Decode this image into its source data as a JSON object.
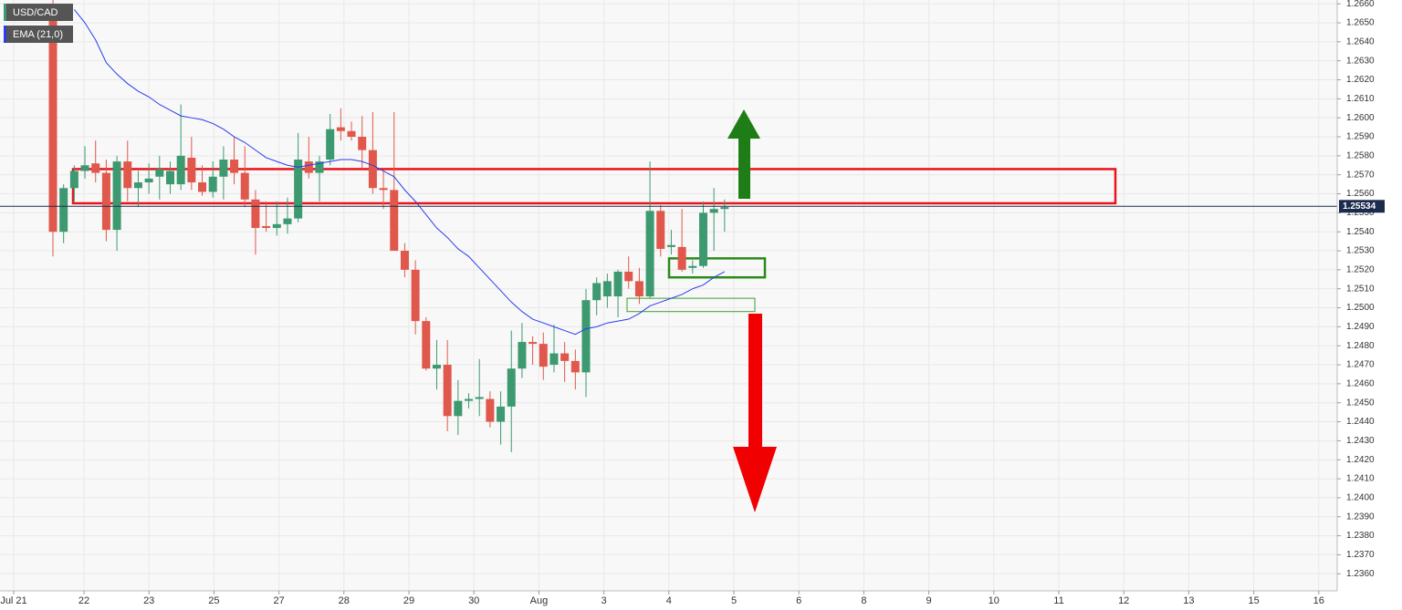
{
  "chart_data": {
    "type": "candlestick",
    "x_tick_labels": [
      "Jul 21",
      "22",
      "23",
      "25",
      "27",
      "28",
      "29",
      "30",
      "Aug",
      "3",
      "4",
      "5",
      "6",
      "8",
      "9",
      "10",
      "11",
      "12",
      "13",
      "15",
      "16"
    ],
    "ylim": [
      1.2351,
      1.2662
    ],
    "yticks": [
      {
        "value": 1.236,
        "label": "1.2360"
      },
      {
        "value": 1.237,
        "label": "1.2370"
      },
      {
        "value": 1.238,
        "label": "1.2380"
      },
      {
        "value": 1.239,
        "label": "1.2390"
      },
      {
        "value": 1.24,
        "label": "1.2400"
      },
      {
        "value": 1.241,
        "label": "1.2410"
      },
      {
        "value": 1.242,
        "label": "1.2420"
      },
      {
        "value": 1.243,
        "label": "1.2430"
      },
      {
        "value": 1.244,
        "label": "1.2440"
      },
      {
        "value": 1.245,
        "label": "1.2450"
      },
      {
        "value": 1.246,
        "label": "1.2460"
      },
      {
        "value": 1.247,
        "label": "1.2470"
      },
      {
        "value": 1.248,
        "label": "1.2480"
      },
      {
        "value": 1.249,
        "label": "1.2490"
      },
      {
        "value": 1.25,
        "label": "1.2500"
      },
      {
        "value": 1.251,
        "label": "1.2510"
      },
      {
        "value": 1.252,
        "label": "1.2520"
      },
      {
        "value": 1.253,
        "label": "1.2530"
      },
      {
        "value": 1.254,
        "label": "1.2540"
      },
      {
        "value": 1.255,
        "label": "1.2550"
      },
      {
        "value": 1.256,
        "label": "1.2560"
      },
      {
        "value": 1.257,
        "label": "1.2570"
      },
      {
        "value": 1.258,
        "label": "1.2580"
      },
      {
        "value": 1.259,
        "label": "1.2590"
      },
      {
        "value": 1.26,
        "label": "1.2600"
      },
      {
        "value": 1.261,
        "label": "1.2610"
      },
      {
        "value": 1.262,
        "label": "1.2620"
      },
      {
        "value": 1.263,
        "label": "1.2630"
      },
      {
        "value": 1.264,
        "label": "1.2640"
      },
      {
        "value": 1.265,
        "label": "1.2650"
      },
      {
        "value": 1.266,
        "label": "1.2660"
      }
    ],
    "grid": true,
    "last_price": {
      "value": 1.25534,
      "label": "1.25534"
    },
    "series": [
      {
        "name": "USD/CAD",
        "type": "candlestick",
        "up_color": "#3d9970",
        "down_color": "#e0584b",
        "values": [
          [
            1.2658,
            1.2668,
            1.2527,
            1.254
          ],
          [
            1.254,
            1.2565,
            1.2534,
            1.2563
          ],
          [
            1.2563,
            1.2575,
            1.2556,
            1.2572
          ],
          [
            1.2572,
            1.2585,
            1.2568,
            1.2575
          ],
          [
            1.2576,
            1.2588,
            1.2566,
            1.2571
          ],
          [
            1.2571,
            1.2578,
            1.2535,
            1.2541
          ],
          [
            1.2541,
            1.258,
            1.253,
            1.2577
          ],
          [
            1.2577,
            1.2588,
            1.2556,
            1.2563
          ],
          [
            1.2563,
            1.2572,
            1.2553,
            1.2566
          ],
          [
            1.2566,
            1.2576,
            1.256,
            1.2568
          ],
          [
            1.2569,
            1.258,
            1.2557,
            1.2573
          ],
          [
            1.2565,
            1.2577,
            1.256,
            1.2572
          ],
          [
            1.2565,
            1.2607,
            1.2562,
            1.258
          ],
          [
            1.2579,
            1.259,
            1.2562,
            1.2566
          ],
          [
            1.2566,
            1.2575,
            1.2559,
            1.2561
          ],
          [
            1.2561,
            1.2577,
            1.2558,
            1.2569
          ],
          [
            1.2569,
            1.2585,
            1.2557,
            1.2578
          ],
          [
            1.2578,
            1.259,
            1.2565,
            1.2571
          ],
          [
            1.2571,
            1.2585,
            1.2553,
            1.2557
          ],
          [
            1.2557,
            1.2562,
            1.2528,
            1.2542
          ],
          [
            1.2543,
            1.2556,
            1.254,
            1.2542
          ],
          [
            1.2542,
            1.2556,
            1.2538,
            1.2544
          ],
          [
            1.2544,
            1.2558,
            1.2539,
            1.2547
          ],
          [
            1.2547,
            1.2592,
            1.2545,
            1.2578
          ],
          [
            1.2577,
            1.259,
            1.2568,
            1.2571
          ],
          [
            1.2571,
            1.258,
            1.2556,
            1.2577
          ],
          [
            1.2578,
            1.2602,
            1.2575,
            1.2594
          ],
          [
            1.2595,
            1.2605,
            1.2588,
            1.2593
          ],
          [
            1.2593,
            1.2598,
            1.2588,
            1.259
          ],
          [
            1.259,
            1.2601,
            1.2573,
            1.2583
          ],
          [
            1.2583,
            1.2603,
            1.256,
            1.2563
          ],
          [
            1.2563,
            1.2572,
            1.2552,
            1.2562
          ],
          [
            1.2562,
            1.2603,
            1.253,
            1.253
          ],
          [
            1.253,
            1.2534,
            1.2516,
            1.252
          ],
          [
            1.252,
            1.2525,
            1.2486,
            1.2493
          ],
          [
            1.2493,
            1.2495,
            1.2467,
            1.2468
          ],
          [
            1.2468,
            1.2483,
            1.2457,
            1.247
          ],
          [
            1.247,
            1.2483,
            1.2435,
            1.2443
          ],
          [
            1.2443,
            1.2462,
            1.2433,
            1.2451
          ],
          [
            1.2451,
            1.2455,
            1.2447,
            1.2452
          ],
          [
            1.2452,
            1.2473,
            1.2443,
            1.2453
          ],
          [
            1.2452,
            1.2456,
            1.2437,
            1.244
          ],
          [
            1.244,
            1.2456,
            1.2428,
            1.2448
          ],
          [
            1.2448,
            1.2488,
            1.2424,
            1.2468
          ],
          [
            1.2468,
            1.2492,
            1.2463,
            1.2482
          ],
          [
            1.2482,
            1.2485,
            1.247,
            1.2481
          ],
          [
            1.2481,
            1.2487,
            1.2462,
            1.2469
          ],
          [
            1.247,
            1.2491,
            1.2466,
            1.2476
          ],
          [
            1.2476,
            1.2482,
            1.2461,
            1.2472
          ],
          [
            1.2472,
            1.2478,
            1.2457,
            1.2466
          ],
          [
            1.2466,
            1.251,
            1.2453,
            1.2504
          ],
          [
            1.2504,
            1.2516,
            1.2496,
            1.2513
          ],
          [
            1.2506,
            1.2518,
            1.25,
            1.2514
          ],
          [
            1.2506,
            1.252,
            1.2495,
            1.2519
          ],
          [
            1.2519,
            1.2527,
            1.251,
            1.2514
          ],
          [
            1.2514,
            1.2521,
            1.2502,
            1.2506
          ],
          [
            1.2506,
            1.2577,
            1.2505,
            1.2551
          ],
          [
            1.2551,
            1.2554,
            1.2527,
            1.2531
          ],
          [
            1.2532,
            1.2541,
            1.2528,
            1.2533
          ],
          [
            1.2532,
            1.2552,
            1.2519,
            1.252
          ],
          [
            1.2521,
            1.2525,
            1.2518,
            1.2522
          ],
          [
            1.2522,
            1.2556,
            1.2521,
            1.255
          ],
          [
            1.255,
            1.2563,
            1.253,
            1.2552
          ],
          [
            1.2552,
            1.2557,
            1.254,
            1.2553
          ]
        ]
      },
      {
        "name": "EMA (21,0)",
        "type": "line",
        "color": "#2a3cf0",
        "values": [
          null,
          null,
          1.2657,
          1.265,
          1.2641,
          1.2629,
          1.2623,
          1.2618,
          1.2614,
          1.2611,
          1.2607,
          1.2604,
          1.2601,
          1.26,
          1.2599,
          1.2597,
          1.2594,
          1.259,
          1.2587,
          1.2583,
          1.2579,
          1.2577,
          1.2575,
          1.2574,
          1.2575,
          1.2576,
          1.2577,
          1.2578,
          1.2578,
          1.2577,
          1.2575,
          1.2572,
          1.2569,
          1.2562,
          1.2556,
          1.2549,
          1.2542,
          1.2537,
          1.2531,
          1.2527,
          1.2521,
          1.2515,
          1.2509,
          1.2503,
          1.2498,
          1.2494,
          1.2492,
          1.249,
          1.2488,
          1.2486,
          1.2489,
          1.249,
          1.2492,
          1.2493,
          1.2494,
          1.2497,
          1.2501,
          1.2503,
          1.2505,
          1.2507,
          1.251,
          1.2512,
          1.2516,
          1.2519
        ]
      }
    ],
    "zones": [
      {
        "color": "#e8141c",
        "ylim": [
          1.2555,
          1.2573
        ]
      },
      {
        "color": "#2a8a1a",
        "ylim": [
          1.2516,
          1.2526
        ]
      },
      {
        "color": "#3aa02a",
        "ylim": [
          1.2498,
          1.2505
        ]
      }
    ]
  }
}
